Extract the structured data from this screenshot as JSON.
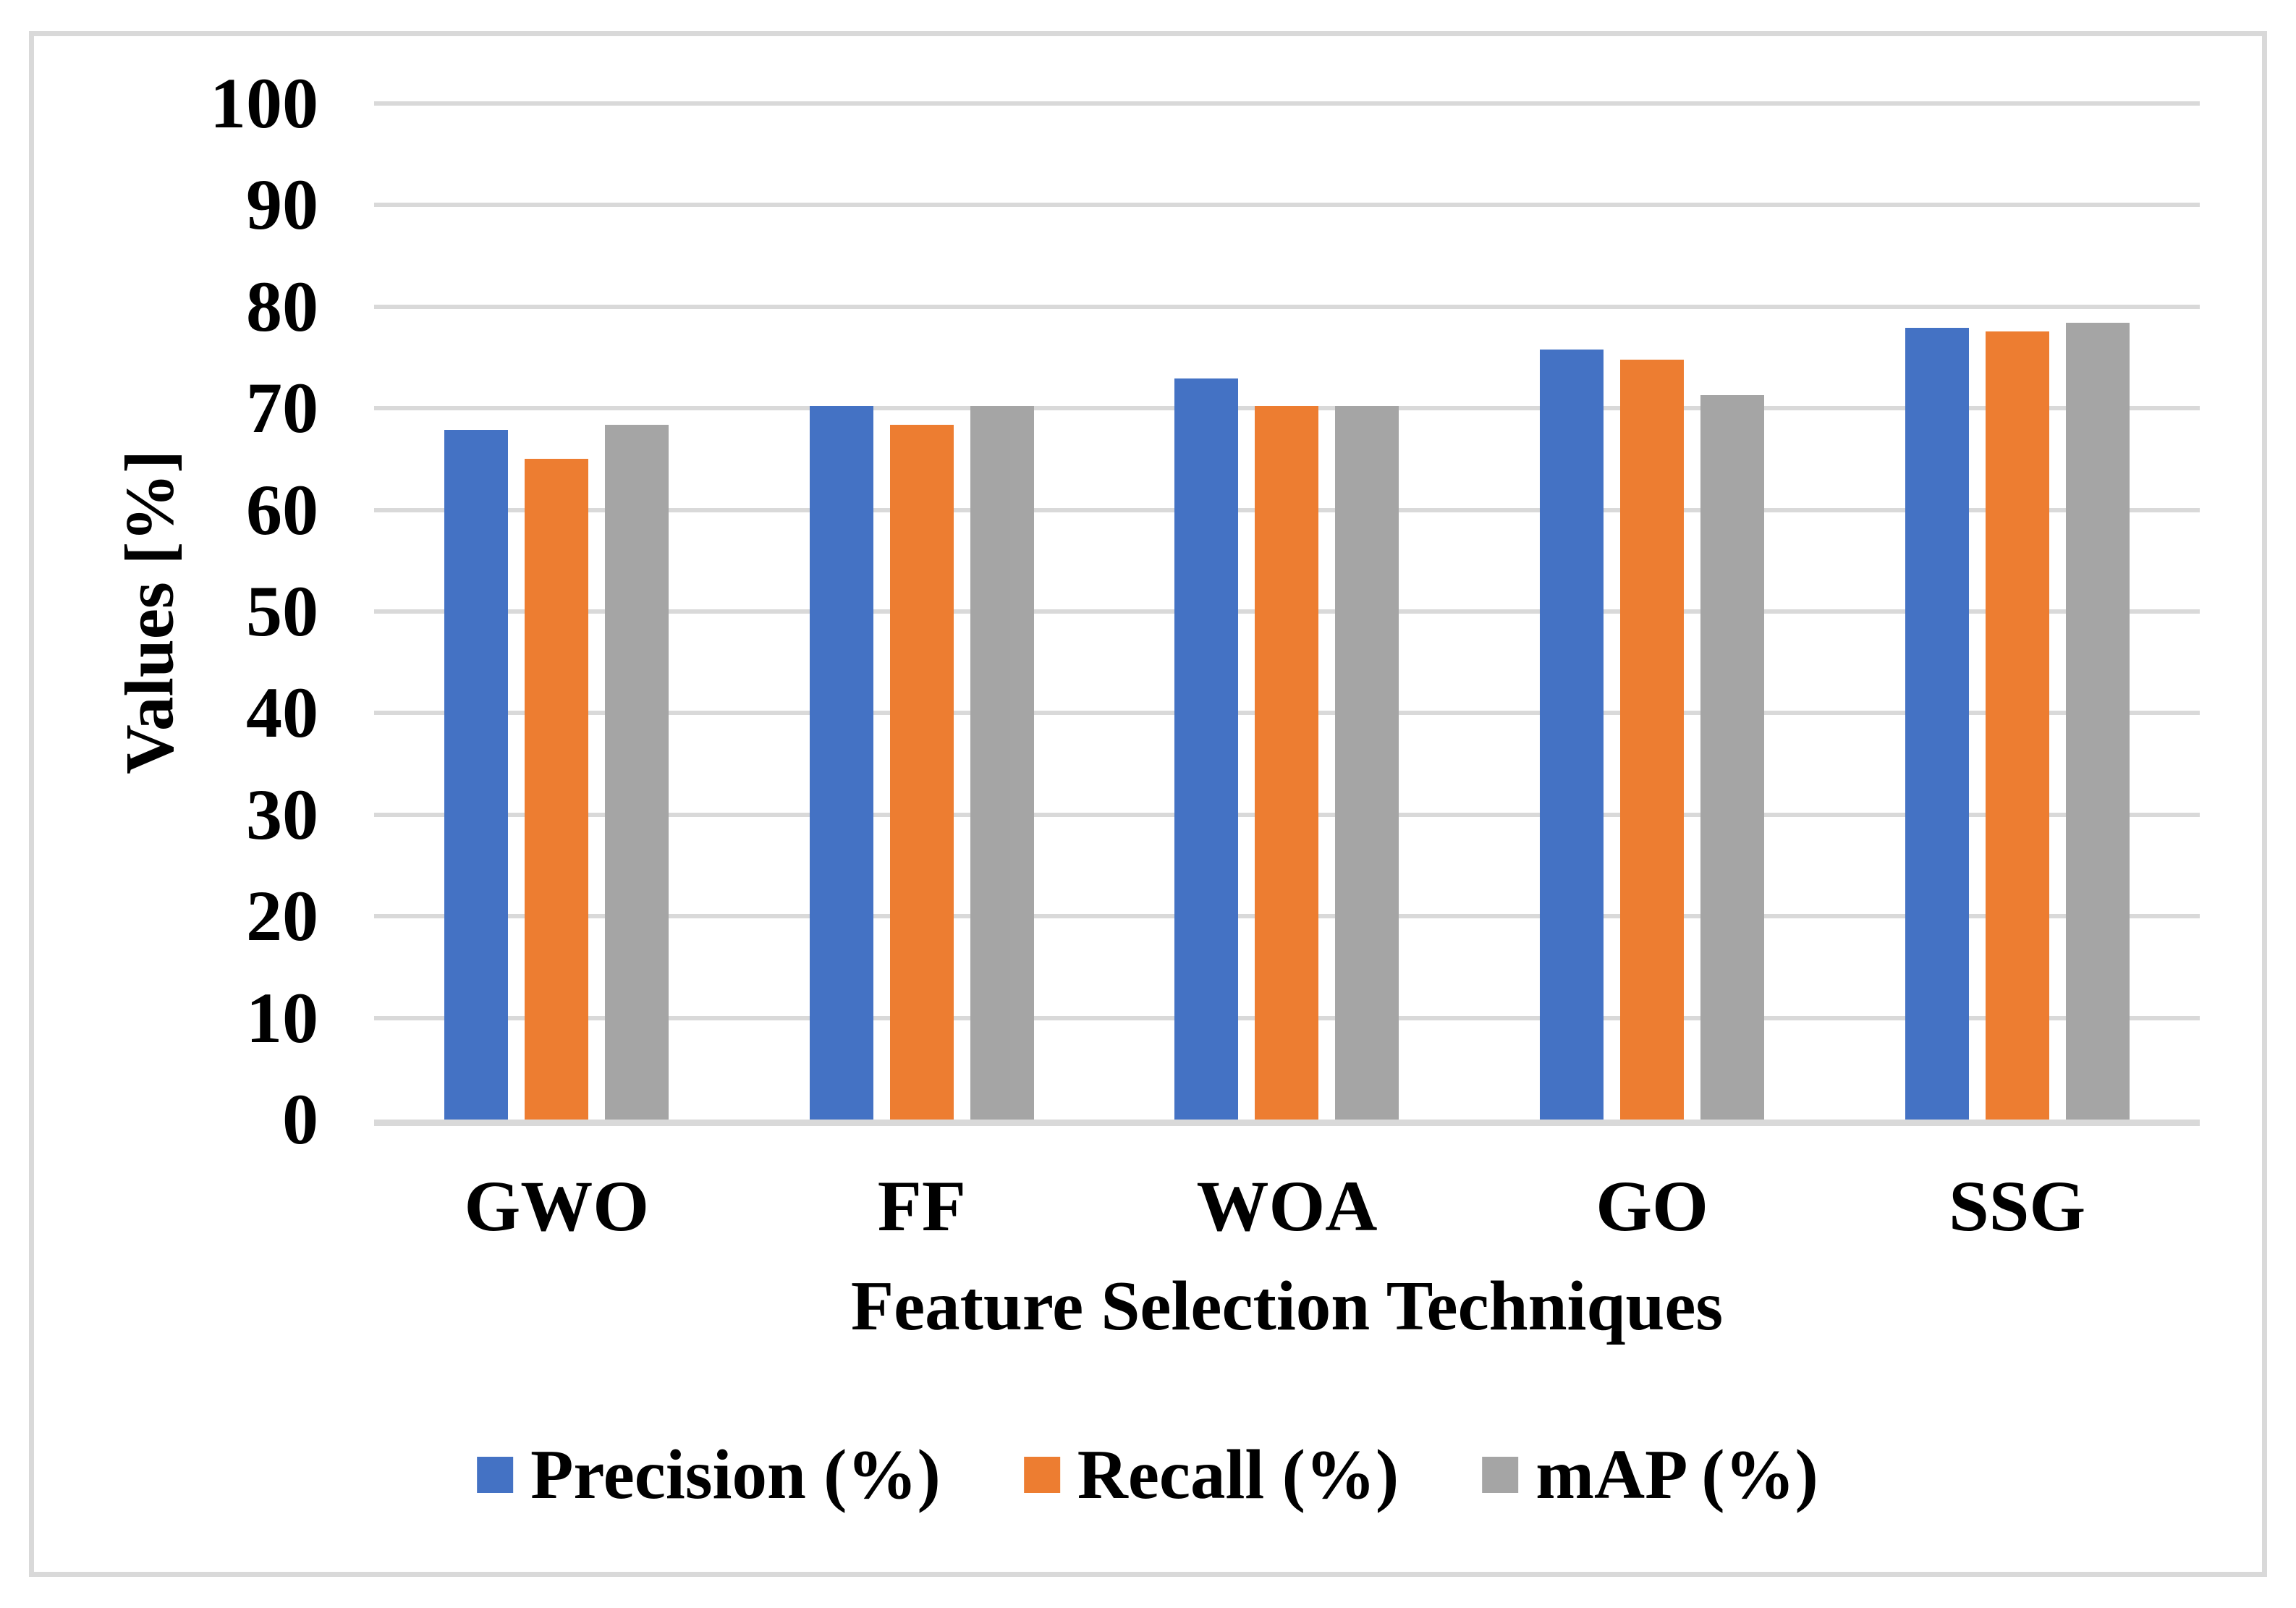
{
  "chart_data": {
    "type": "bar",
    "title": "",
    "categories": [
      "GWO",
      "FF",
      "WOA",
      "GO",
      "SSG"
    ],
    "series": [
      {
        "name": "Precision (%)",
        "color": "#4472C4",
        "values": [
          67.9,
          70.2,
          72.9,
          75.8,
          77.9
        ]
      },
      {
        "name": "Recall (%)",
        "color": "#ED7D31",
        "values": [
          65.0,
          68.4,
          70.2,
          74.8,
          77.6
        ]
      },
      {
        "name": "mAP (%)",
        "color": "#A5A5A5",
        "values": [
          68.4,
          70.2,
          70.2,
          71.3,
          78.4
        ]
      }
    ],
    "xlabel": "Feature Selection Techniques",
    "ylabel": "Values [%]",
    "ylim": [
      0,
      100
    ],
    "yticks": [
      0,
      10,
      20,
      30,
      40,
      50,
      60,
      70,
      80,
      90,
      100
    ],
    "grid": true,
    "legend_position": "bottom"
  },
  "styles": {
    "gridline_color": "#D9D9D9",
    "axis_line_color": "#D9D9D9",
    "frame_border_color": "#D9D9D9",
    "background_color": "#FFFFFF",
    "text_color": "#000000"
  }
}
